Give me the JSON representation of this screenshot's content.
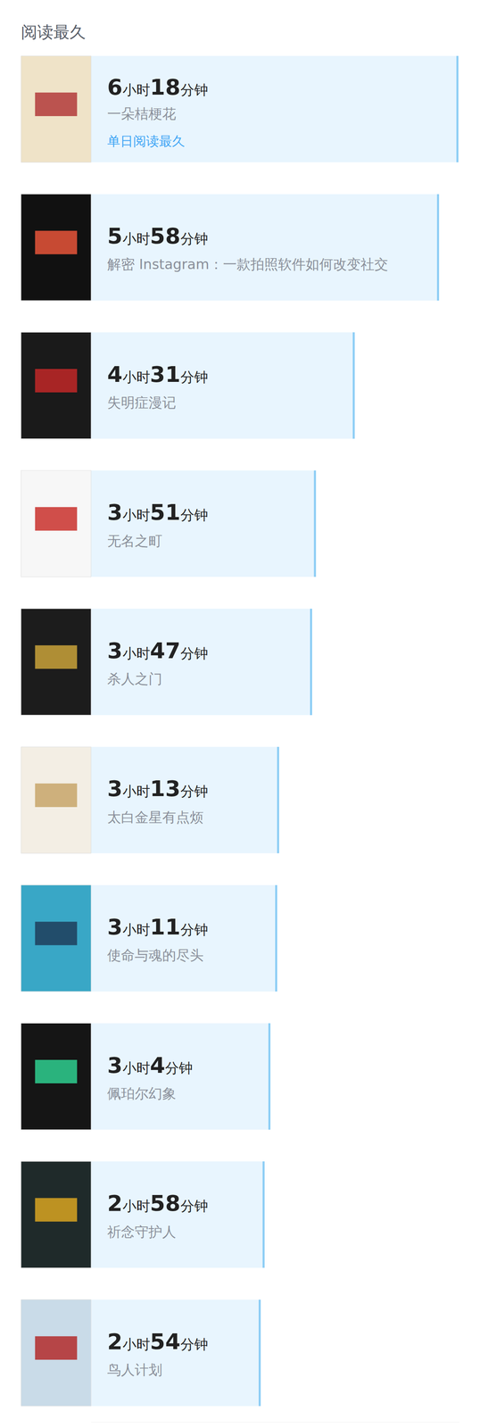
{
  "chart_data": {
    "type": "bar",
    "orientation": "horizontal",
    "title": "阅读最久",
    "categories": [
      "一朵桔梗花",
      "解密 Instagram：一款拍照软件如何改变社交",
      "失明症漫记",
      "无名之町",
      "杀人之门",
      "太白金星有点烦",
      "使命与魂的尽头",
      "佩珀尔幻象",
      "祈念守护人",
      "鸟人计划"
    ],
    "values": [
      378,
      358,
      271,
      231,
      227,
      193,
      191,
      184,
      178,
      174
    ],
    "value_labels": [
      "6小时18分钟",
      "5小时58分钟",
      "4小时31分钟",
      "3小时51分钟",
      "3小时47分钟",
      "3小时13分钟",
      "3小时11分钟",
      "3小时4分钟",
      "2小时58分钟",
      "2小时54分钟"
    ],
    "color": "#e8f5fe",
    "xlim": [
      0,
      380
    ],
    "xticks": [],
    "tick_labels": false,
    "grid": false,
    "data_labels": true,
    "annotations": [
      {
        "category": "一朵桔梗花",
        "text": "单日阅读最久"
      }
    ]
  }
}
